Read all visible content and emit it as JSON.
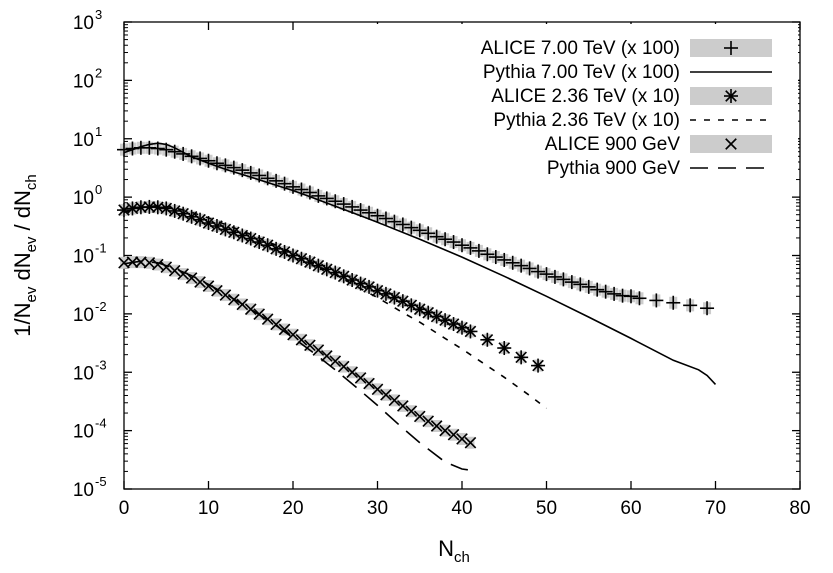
{
  "chart_data": {
    "type": "scatter",
    "xlabel": {
      "main": "N",
      "sub": "ch"
    },
    "ylabel": {
      "parts": [
        {
          "t": "1/N",
          "s": "base"
        },
        {
          "t": "ev",
          "s": "sub"
        },
        {
          "t": " dN",
          "s": "base"
        },
        {
          "t": "ev",
          "s": "sub"
        },
        {
          "t": " / dN",
          "s": "base"
        },
        {
          "t": "ch",
          "s": "sub"
        }
      ]
    },
    "xlim": [
      0,
      80
    ],
    "ylim": [
      1e-05,
      1000
    ],
    "yscale": "log",
    "xticks": [
      "0",
      "10",
      "20",
      "30",
      "40",
      "50",
      "60",
      "70",
      "80"
    ],
    "yticks": [
      {
        "base": "10",
        "exp": "-5"
      },
      {
        "base": "10",
        "exp": "-4"
      },
      {
        "base": "10",
        "exp": "-3"
      },
      {
        "base": "10",
        "exp": "-2"
      },
      {
        "base": "10",
        "exp": "-1"
      },
      {
        "base": "10",
        "exp": "0"
      },
      {
        "base": "10",
        "exp": "1"
      },
      {
        "base": "10",
        "exp": "2"
      },
      {
        "base": "10",
        "exp": "3"
      }
    ],
    "legend_position": "top-right",
    "series": [
      {
        "name": "ALICE 7.00 TeV (x 100)",
        "kind": "points",
        "marker": "plus",
        "color": "#000000",
        "band": "#cccccc",
        "x": [
          0,
          1,
          2,
          3,
          4,
          5,
          6,
          7,
          8,
          9,
          10,
          11,
          12,
          13,
          14,
          15,
          16,
          17,
          18,
          19,
          20,
          21,
          22,
          23,
          24,
          25,
          26,
          27,
          28,
          29,
          30,
          31,
          32,
          33,
          34,
          35,
          36,
          37,
          38,
          39,
          40,
          41,
          42,
          43,
          44,
          45,
          46,
          47,
          48,
          49,
          50,
          51,
          52,
          53,
          54,
          55,
          56,
          57,
          58,
          59,
          60,
          61,
          63,
          65,
          67,
          69
        ],
        "y": [
          6.5,
          6.8,
          7.0,
          7.0,
          6.8,
          6.5,
          6.0,
          5.5,
          5.0,
          4.6,
          4.2,
          3.8,
          3.5,
          3.2,
          2.9,
          2.6,
          2.35,
          2.1,
          1.9,
          1.7,
          1.5,
          1.35,
          1.2,
          1.05,
          0.95,
          0.85,
          0.76,
          0.68,
          0.6,
          0.54,
          0.48,
          0.43,
          0.38,
          0.34,
          0.3,
          0.27,
          0.24,
          0.21,
          0.19,
          0.17,
          0.15,
          0.135,
          0.12,
          0.105,
          0.094,
          0.084,
          0.075,
          0.067,
          0.06,
          0.053,
          0.048,
          0.043,
          0.039,
          0.035,
          0.032,
          0.029,
          0.026,
          0.024,
          0.022,
          0.0205,
          0.02,
          0.0185,
          0.017,
          0.0155,
          0.014,
          0.0125
        ]
      },
      {
        "name": "Pythia 7.00 TeV (x 100)",
        "kind": "line",
        "dash": "",
        "color": "#000000",
        "x": [
          0,
          1,
          2,
          3,
          4,
          5,
          6,
          8,
          10,
          12,
          15,
          18,
          20,
          22,
          25,
          28,
          30,
          35,
          40,
          45,
          50,
          55,
          60,
          65,
          68,
          69,
          70
        ],
        "y": [
          5.8,
          6.5,
          7.3,
          8.0,
          8.4,
          8.0,
          7.0,
          4.9,
          3.8,
          3.0,
          2.2,
          1.6,
          1.3,
          1.02,
          0.7,
          0.48,
          0.37,
          0.19,
          0.094,
          0.044,
          0.02,
          0.0088,
          0.0038,
          0.0016,
          0.0011,
          0.00088,
          0.00062
        ]
      },
      {
        "name": "ALICE 2.36 TeV (x 10)",
        "kind": "points",
        "marker": "star",
        "color": "#000000",
        "band": "#cccccc",
        "x": [
          0,
          1,
          2,
          3,
          4,
          5,
          6,
          7,
          8,
          9,
          10,
          11,
          12,
          13,
          14,
          15,
          16,
          17,
          18,
          19,
          20,
          21,
          22,
          23,
          24,
          25,
          26,
          27,
          28,
          29,
          30,
          31,
          32,
          33,
          34,
          35,
          36,
          37,
          38,
          39,
          40,
          41,
          43,
          45,
          47,
          49
        ],
        "y": [
          0.6,
          0.64,
          0.67,
          0.68,
          0.67,
          0.64,
          0.58,
          0.52,
          0.46,
          0.41,
          0.36,
          0.32,
          0.28,
          0.25,
          0.22,
          0.195,
          0.17,
          0.15,
          0.13,
          0.115,
          0.1,
          0.088,
          0.077,
          0.067,
          0.058,
          0.051,
          0.044,
          0.038,
          0.033,
          0.029,
          0.025,
          0.022,
          0.019,
          0.0165,
          0.014,
          0.012,
          0.0105,
          0.009,
          0.0078,
          0.0067,
          0.0058,
          0.005,
          0.0036,
          0.0026,
          0.0018,
          0.0013
        ]
      },
      {
        "name": "Pythia 2.36 TeV (x 10)",
        "kind": "line",
        "dash": "6,8",
        "color": "#000000",
        "x": [
          0,
          2,
          4,
          6,
          8,
          10,
          12,
          15,
          18,
          20,
          22,
          25,
          28,
          30,
          33,
          35,
          38,
          40,
          42,
          45,
          48,
          50
        ],
        "y": [
          0.55,
          0.65,
          0.72,
          0.66,
          0.55,
          0.44,
          0.34,
          0.23,
          0.15,
          0.11,
          0.078,
          0.047,
          0.027,
          0.019,
          0.0105,
          0.0072,
          0.0038,
          0.0025,
          0.0016,
          0.00082,
          0.0004,
          0.00024
        ]
      },
      {
        "name": "ALICE 900 GeV",
        "kind": "points",
        "marker": "cross",
        "color": "#000000",
        "band": "#cccccc",
        "x": [
          0,
          1,
          2,
          3,
          4,
          5,
          6,
          7,
          8,
          9,
          10,
          11,
          12,
          13,
          14,
          15,
          16,
          17,
          18,
          19,
          20,
          21,
          22,
          23,
          24,
          25,
          26,
          27,
          28,
          29,
          30,
          31,
          32,
          33,
          34,
          35,
          36,
          37,
          38,
          39,
          40,
          41
        ],
        "y": [
          0.075,
          0.077,
          0.077,
          0.075,
          0.07,
          0.063,
          0.055,
          0.048,
          0.041,
          0.035,
          0.03,
          0.025,
          0.021,
          0.0175,
          0.0145,
          0.012,
          0.0099,
          0.0081,
          0.0066,
          0.0054,
          0.0044,
          0.0036,
          0.0029,
          0.0024,
          0.0019,
          0.00155,
          0.00125,
          0.001,
          0.0008,
          0.00064,
          0.00051,
          0.00041,
          0.00033,
          0.000265,
          0.000215,
          0.000175,
          0.000145,
          0.00012,
          0.0001,
          8.5e-05,
          7.2e-05,
          6.2e-05
        ]
      },
      {
        "name": "Pythia 900 GeV",
        "kind": "line",
        "dash": "18,10",
        "color": "#000000",
        "x": [
          0,
          2,
          4,
          6,
          8,
          10,
          12,
          15,
          18,
          20,
          22,
          25,
          28,
          30,
          33,
          35,
          38,
          40,
          41
        ],
        "y": [
          0.072,
          0.08,
          0.075,
          0.06,
          0.045,
          0.032,
          0.022,
          0.012,
          0.0063,
          0.0039,
          0.0024,
          0.0011,
          0.00048,
          0.00027,
          0.00011,
          6.2e-05,
          2.9e-05,
          2.2e-05,
          2.1e-05
        ]
      }
    ]
  }
}
